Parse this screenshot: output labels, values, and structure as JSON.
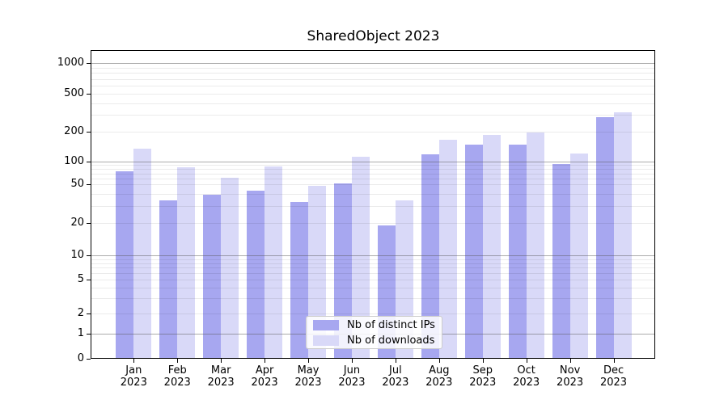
{
  "title": "SharedObject 2023",
  "chart_data": {
    "type": "bar",
    "title": "SharedObject 2023",
    "categories": [
      "Jan",
      "Feb",
      "Mar",
      "Apr",
      "May",
      "Jun",
      "Jul",
      "Aug",
      "Sep",
      "Oct",
      "Nov",
      "Dec"
    ],
    "xtick_year": "2023",
    "series": [
      {
        "name": "Nb of distinct IPs",
        "color": "#a7a7f0",
        "values": [
          75,
          34,
          39,
          43,
          33,
          52,
          19,
          118,
          150,
          148,
          94,
          287
        ]
      },
      {
        "name": "Nb of downloads",
        "color": "#d9d9f8",
        "values": [
          135,
          85,
          61,
          86,
          48,
          113,
          34,
          165,
          187,
          199,
          121,
          320
        ]
      }
    ],
    "yscale": "symlog",
    "ytick_values": [
      0,
      1,
      2,
      5,
      10,
      20,
      50,
      100,
      200,
      500,
      1000
    ],
    "ytick_labels": [
      "0",
      "1",
      "2",
      "5",
      "10",
      "20",
      "50",
      "100",
      "200",
      "500",
      "1000"
    ],
    "ylim": [
      0,
      1400
    ],
    "grid": true,
    "legend_position": "lower center",
    "xlabel": "",
    "ylabel": ""
  }
}
